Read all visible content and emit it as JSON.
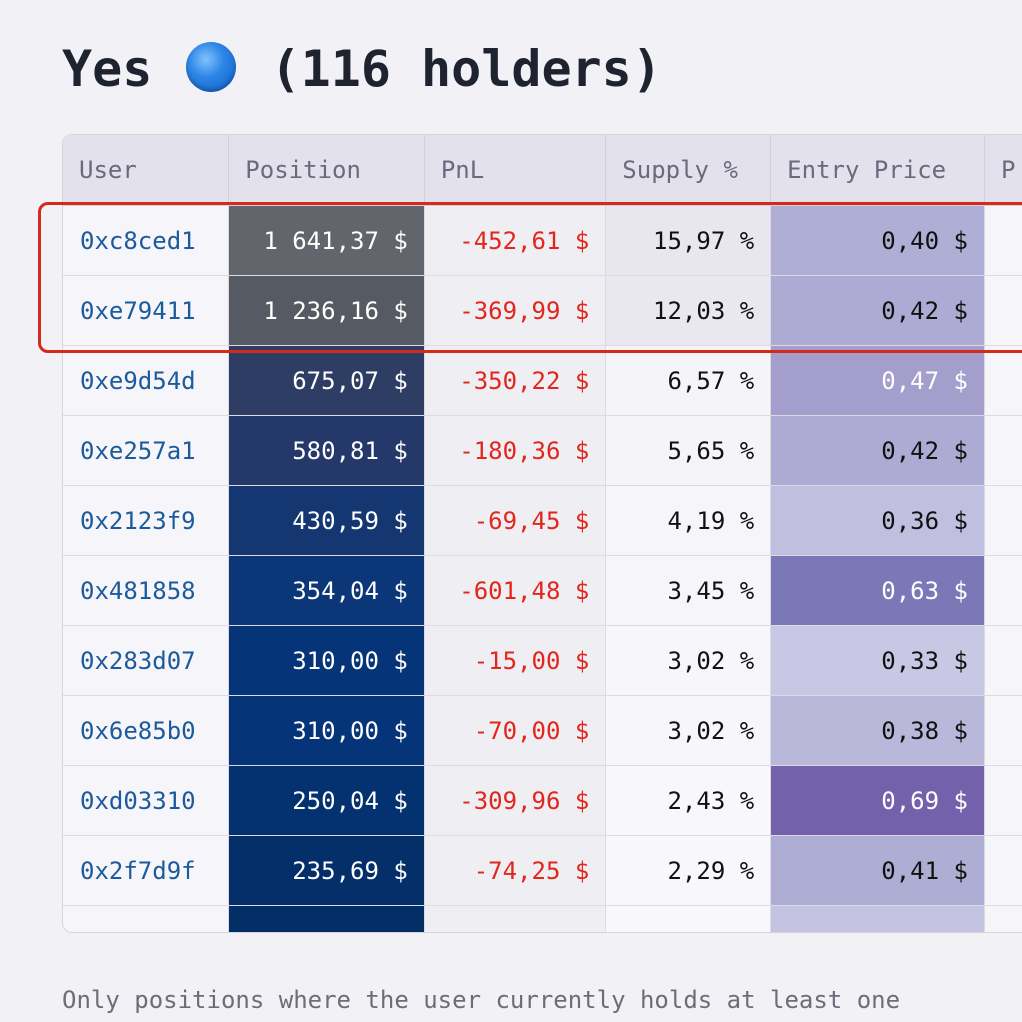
{
  "header": {
    "title_prefix": "Yes",
    "title_suffix": "(116 holders)",
    "icon": "blue-circle-emoji"
  },
  "table": {
    "columns": [
      "User",
      "Position",
      "PnL",
      "Supply %",
      "Entry Price",
      "P"
    ],
    "rows": [
      {
        "user": "0xc8ced1",
        "position": "1 641,37 $",
        "pnl": "-452,61 $",
        "supply": "15,97 %",
        "entry": "0,40 $"
      },
      {
        "user": "0xe79411",
        "position": "1 236,16 $",
        "pnl": "-369,99 $",
        "supply": "12,03 %",
        "entry": "0,42 $"
      },
      {
        "user": "0xe9d54d",
        "position": "675,07 $",
        "pnl": "-350,22 $",
        "supply": "6,57 %",
        "entry": "0,47 $"
      },
      {
        "user": "0xe257a1",
        "position": "580,81 $",
        "pnl": "-180,36 $",
        "supply": "5,65 %",
        "entry": "0,42 $"
      },
      {
        "user": "0x2123f9",
        "position": "430,59 $",
        "pnl": "-69,45 $",
        "supply": "4,19 %",
        "entry": "0,36 $"
      },
      {
        "user": "0x481858",
        "position": "354,04 $",
        "pnl": "-601,48 $",
        "supply": "3,45 %",
        "entry": "0,63 $"
      },
      {
        "user": "0x283d07",
        "position": "310,00 $",
        "pnl": "-15,00 $",
        "supply": "3,02 %",
        "entry": "0,33 $"
      },
      {
        "user": "0x6e85b0",
        "position": "310,00 $",
        "pnl": "-70,00 $",
        "supply": "3,02 %",
        "entry": "0,38 $"
      },
      {
        "user": "0xd03310",
        "position": "250,04 $",
        "pnl": "-309,96 $",
        "supply": "2,43 %",
        "entry": "0,69 $"
      },
      {
        "user": "0x2f7d9f",
        "position": "235,69 $",
        "pnl": "-74,25 $",
        "supply": "2,29 %",
        "entry": "0,41 $"
      }
    ]
  },
  "colors": {
    "position_bg": [
      "#62656b",
      "#565a62",
      "#2e3d63",
      "#24386a",
      "#143772",
      "#0b3677",
      "#063478",
      "#053479",
      "#04316f",
      "#042f69"
    ],
    "supply_bg": [
      "#e8e7f0",
      "#e9e8f0",
      "#f5f4f8",
      "#f5f4f8",
      "#f6f5f9",
      "#f6f5f9",
      "#f7f6fa",
      "#f7f6fa",
      "#f8f7fb",
      "#f8f7fb"
    ],
    "entry_bg": [
      "#afaed4",
      "#adabd3",
      "#a39ecb",
      "#adabd3",
      "#c0bfdf",
      "#7b78b8",
      "#c9c8e4",
      "#b9b8db",
      "#7461ac",
      "#aeadd3"
    ],
    "entry_fg": [
      "#111111",
      "#111111",
      "#ffffff",
      "#111111",
      "#111111",
      "#ffffff",
      "#111111",
      "#111111",
      "#ffffff",
      "#111111"
    ],
    "highlight": "#d42a1c"
  },
  "footer": {
    "note": "Only positions where the user currently holds at least one"
  }
}
